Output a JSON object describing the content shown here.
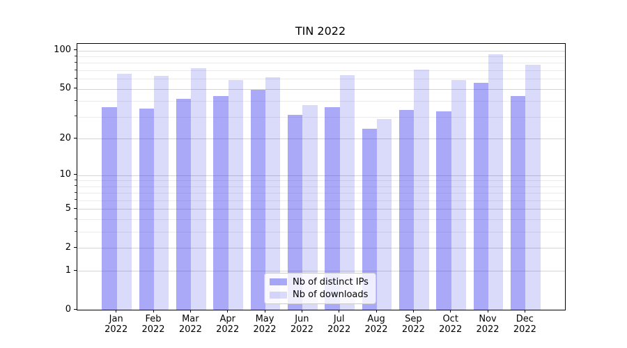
{
  "chart_data": {
    "type": "bar",
    "title": "TIN 2022",
    "year_label": "2022",
    "categories": [
      "Jan",
      "Feb",
      "Mar",
      "Apr",
      "May",
      "Jun",
      "Jul",
      "Aug",
      "Sep",
      "Oct",
      "Nov",
      "Dec"
    ],
    "series": [
      {
        "name": "Nb of distinct IPs",
        "color": "rgba(50,50,235,0.42)",
        "values": [
          36,
          35,
          42,
          44,
          49,
          31,
          36,
          24,
          34,
          33,
          56,
          44
        ]
      },
      {
        "name": "Nb of downloads",
        "color": "rgba(50,50,235,0.18)",
        "values": [
          66,
          63,
          73,
          59,
          62,
          37,
          64,
          29,
          71,
          59,
          93,
          77
        ]
      }
    ],
    "yscale": "log1p",
    "ylim": [
      0,
      112
    ],
    "yticks": [
      0,
      1,
      2,
      5,
      10,
      20,
      50,
      100
    ],
    "minor_yticks": [
      3,
      4,
      6,
      7,
      8,
      9,
      30,
      40,
      60,
      70,
      80,
      90
    ],
    "xlabel": "",
    "ylabel": "",
    "grid": true,
    "legend_position": "lower-center"
  },
  "colors": {
    "major_grid": "#d4d4d4",
    "minor_grid": "#ebebeb",
    "axis": "#000000",
    "legend_border": "#cccccc",
    "bar_distinct_ips": "rgba(50,50,235,0.42)",
    "bar_downloads": "rgba(50,50,235,0.18)"
  }
}
